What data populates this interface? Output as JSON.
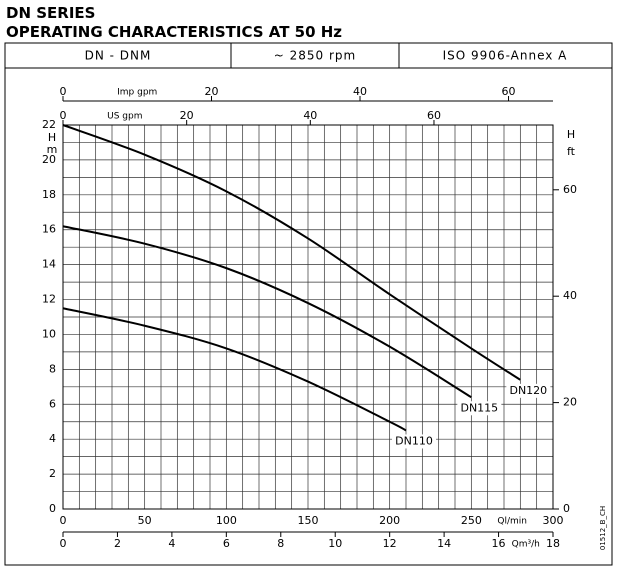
{
  "header": {
    "series": "DN SERIES",
    "title": "OPERATING CHARACTERISTICS AT 50 Hz",
    "cells": [
      "DN - DNM",
      "~ 2850 rpm",
      "ISO 9906-Annex A"
    ]
  },
  "chart_data": {
    "type": "line",
    "xlim": [
      0,
      300
    ],
    "xticks": [
      0,
      50,
      100,
      150,
      200,
      250,
      300
    ],
    "x_label": "Ql/min",
    "ylim": [
      0,
      22
    ],
    "yticks": [
      0,
      2,
      4,
      6,
      8,
      10,
      12,
      14,
      16,
      18,
      20,
      22
    ],
    "y_label": "H",
    "y_unit": "m",
    "y2lim": [
      0,
      72.18
    ],
    "y2ticks": [
      0,
      20,
      40,
      60
    ],
    "y2_label": "H",
    "y2_unit": "ft",
    "extra_x_axes": [
      {
        "label": "Imp gpm",
        "lim": [
          0,
          65.99
        ],
        "ticks": [
          0,
          20,
          40,
          60
        ],
        "position": "top"
      },
      {
        "label": "US gpm",
        "lim": [
          0,
          79.25
        ],
        "ticks": [
          0,
          20,
          40,
          60
        ],
        "position": "top"
      },
      {
        "label": "Qm³/h",
        "lim": [
          0,
          18
        ],
        "ticks": [
          0,
          2,
          4,
          6,
          8,
          10,
          12,
          14,
          16,
          18
        ],
        "position": "bottom"
      }
    ],
    "grid": true,
    "series": [
      {
        "name": "DN120",
        "color": "#000000",
        "x": [
          0,
          50,
          100,
          150,
          200,
          250,
          280
        ],
        "values": [
          22,
          20.3,
          18.2,
          15.5,
          12.3,
          9.2,
          7.4
        ]
      },
      {
        "name": "DN115",
        "color": "#000000",
        "x": [
          0,
          50,
          100,
          150,
          200,
          250
        ],
        "values": [
          16.2,
          15.2,
          13.8,
          11.8,
          9.3,
          6.4
        ]
      },
      {
        "name": "DN110",
        "color": "#000000",
        "x": [
          0,
          50,
          100,
          150,
          200,
          210
        ],
        "values": [
          11.5,
          10.5,
          9.2,
          7.3,
          5,
          4.5
        ]
      }
    ],
    "code": "01512_B_CH"
  }
}
